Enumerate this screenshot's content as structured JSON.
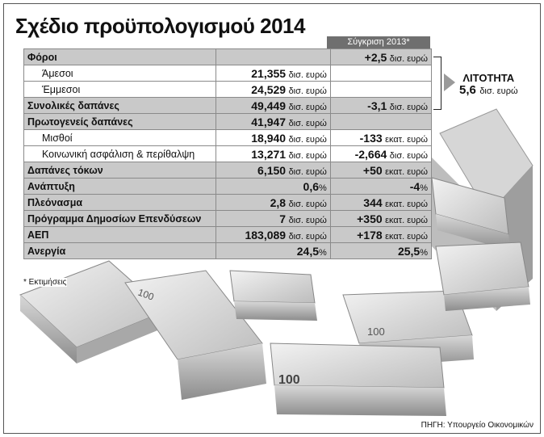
{
  "title": "Σχέδιο προϋπολογισμού 2014",
  "compare_header": "Σύγκριση 2013*",
  "rows": [
    {
      "label": "Φόροι",
      "value": "",
      "unit": "",
      "compare": "+2,5",
      "compare_unit": "δισ. ευρώ",
      "kind": "main"
    },
    {
      "label": "Άμεσοι",
      "value": "21,355",
      "unit": "δισ. ευρώ",
      "compare": "",
      "compare_unit": "",
      "kind": "sub"
    },
    {
      "label": "Έμμεσοι",
      "value": "24,529",
      "unit": "δισ. ευρώ",
      "compare": "",
      "compare_unit": "",
      "kind": "sub"
    },
    {
      "label": "Συνολικές δαπάνες",
      "value": "49,449",
      "unit": "δισ. ευρώ",
      "compare": "-3,1",
      "compare_unit": "δισ. ευρώ",
      "kind": "main"
    },
    {
      "label": "Πρωτογενείς δαπάνες",
      "value": "41,947",
      "unit": "δισ. ευρώ",
      "compare": "",
      "compare_unit": "",
      "kind": "main"
    },
    {
      "label": "Μισθοί",
      "value": "18,940",
      "unit": "δισ. ευρώ",
      "compare": "-133",
      "compare_unit": "εκατ. ευρώ",
      "kind": "sub"
    },
    {
      "label": "Κοινωνική ασφάλιση & περίθαλψη",
      "value": "13,271",
      "unit": "δισ. ευρώ",
      "compare": "-2,664",
      "compare_unit": "δισ. ευρώ",
      "kind": "sub"
    },
    {
      "label": "Δαπάνες τόκων",
      "value": "6,150",
      "unit": "δισ. ευρώ",
      "compare": "+50",
      "compare_unit": "εκατ. ευρώ",
      "kind": "main"
    },
    {
      "label": "Ανάπτυξη",
      "value": "0,6",
      "unit": "%",
      "compare": "-4",
      "compare_unit": "%",
      "kind": "main"
    },
    {
      "label": "Πλεόνασμα",
      "value": "2,8",
      "unit": "δισ. ευρώ",
      "compare": "344",
      "compare_unit": "εκατ. ευρώ",
      "kind": "main"
    },
    {
      "label": "Πρόγραμμα Δημοσίων Επενδύσεων",
      "value": "7",
      "unit": "δισ. ευρώ",
      "compare": "+350",
      "compare_unit": "εκατ. ευρώ",
      "kind": "main"
    },
    {
      "label": "ΑΕΠ",
      "value": "183,089",
      "unit": "δισ. ευρώ",
      "compare": "+178",
      "compare_unit": "εκατ. ευρώ",
      "kind": "main"
    },
    {
      "label": "Ανεργία",
      "value": "24,5",
      "unit": "%",
      "compare": "25,5",
      "compare_unit": "%",
      "kind": "main"
    }
  ],
  "austerity": {
    "heading": "ΛΙΤΟΤΗΤΑ",
    "value": "5,6",
    "unit": "δισ. ευρώ"
  },
  "footnote": "* Εκτιμήσεις",
  "source": "ΠΗΓΗ: Υπουργείο Οικονομικών",
  "banknote_denomination": "100",
  "banknote_currency": "EURO",
  "colors": {
    "header_bg": "#6f6f6f",
    "row_shade": "#c9c9c9",
    "arrow": "#9a9a9a"
  }
}
